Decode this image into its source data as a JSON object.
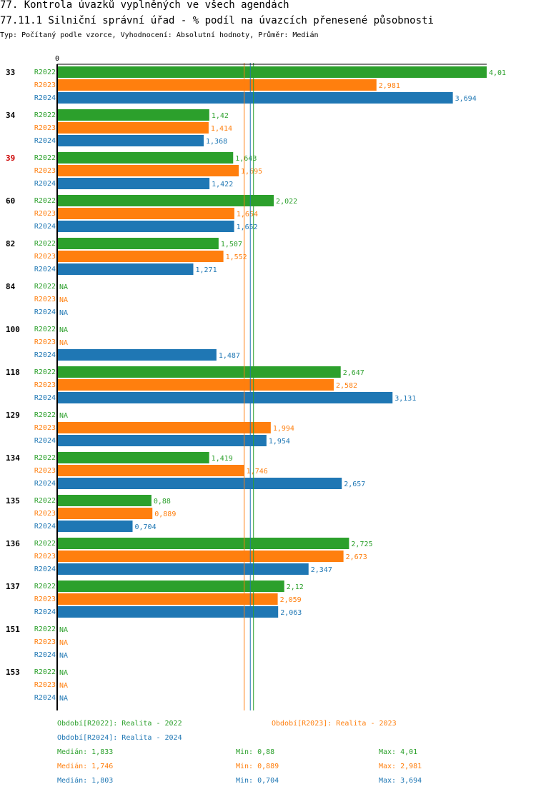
{
  "header": {
    "title": "77. Kontrola úvazků vyplněných ve všech agendách",
    "subtitle": "77.11.1 Silniční správní úřad - % podíl na úvazcích přenesené působnosti",
    "info": "Typ: Počítaný podle vzorce, Vyhodnocení: Absolutní hodnoty, Průměr: Medián"
  },
  "colors": {
    "R2022": "#2ca02c",
    "R2023": "#ff7f0e",
    "R2024": "#1f77b4",
    "highlight": "#cc0000"
  },
  "chart_data": {
    "type": "bar",
    "orientation": "horizontal",
    "title": "77.11.1 Silniční správní úřad - % podíl na úvazcích přenesené působnosti",
    "x_tick_labels": [
      "0"
    ],
    "xlim": [
      0,
      4.01
    ],
    "na_label": "NA",
    "series_names": [
      "R2022",
      "R2023",
      "R2024"
    ],
    "categories": [
      {
        "label": "33",
        "highlight": false,
        "values": [
          4.01,
          2.981,
          3.694
        ],
        "labels": [
          "4,01",
          "2,981",
          "3,694"
        ]
      },
      {
        "label": "34",
        "highlight": false,
        "values": [
          1.42,
          1.414,
          1.368
        ],
        "labels": [
          "1,42",
          "1,414",
          "1,368"
        ]
      },
      {
        "label": "39",
        "highlight": true,
        "values": [
          1.643,
          1.695,
          1.422
        ],
        "labels": [
          "1,643",
          "1,695",
          "1,422"
        ]
      },
      {
        "label": "60",
        "highlight": false,
        "values": [
          2.022,
          1.654,
          1.652
        ],
        "labels": [
          "2,022",
          "1,654",
          "1,652"
        ]
      },
      {
        "label": "82",
        "highlight": false,
        "values": [
          1.507,
          1.552,
          1.271
        ],
        "labels": [
          "1,507",
          "1,552",
          "1,271"
        ]
      },
      {
        "label": "84",
        "highlight": false,
        "values": [
          null,
          null,
          null
        ],
        "labels": [
          "NA",
          "NA",
          "NA"
        ]
      },
      {
        "label": "100",
        "highlight": false,
        "values": [
          null,
          null,
          1.487
        ],
        "labels": [
          "NA",
          "NA",
          "1,487"
        ]
      },
      {
        "label": "118",
        "highlight": false,
        "values": [
          2.647,
          2.582,
          3.131
        ],
        "labels": [
          "2,647",
          "2,582",
          "3,131"
        ]
      },
      {
        "label": "129",
        "highlight": false,
        "values": [
          null,
          1.994,
          1.954
        ],
        "labels": [
          "NA",
          "1,994",
          "1,954"
        ]
      },
      {
        "label": "134",
        "highlight": false,
        "values": [
          1.419,
          1.746,
          2.657
        ],
        "labels": [
          "1,419",
          "1,746",
          "2,657"
        ]
      },
      {
        "label": "135",
        "highlight": false,
        "values": [
          0.88,
          0.889,
          0.704
        ],
        "labels": [
          "0,88",
          "0,889",
          "0,704"
        ]
      },
      {
        "label": "136",
        "highlight": false,
        "values": [
          2.725,
          2.673,
          2.347
        ],
        "labels": [
          "2,725",
          "2,673",
          "2,347"
        ]
      },
      {
        "label": "137",
        "highlight": false,
        "values": [
          2.12,
          2.059,
          2.063
        ],
        "labels": [
          "2,12",
          "2,059",
          "2,063"
        ]
      },
      {
        "label": "151",
        "highlight": false,
        "values": [
          null,
          null,
          null
        ],
        "labels": [
          "NA",
          "NA",
          "NA"
        ]
      },
      {
        "label": "153",
        "highlight": false,
        "values": [
          null,
          null,
          null
        ],
        "labels": [
          "NA",
          "NA",
          "NA"
        ]
      }
    ],
    "median_lines": [
      {
        "series": "R2022",
        "value": 1.833
      },
      {
        "series": "R2023",
        "value": 1.746
      },
      {
        "series": "R2024",
        "value": 1.803
      }
    ]
  },
  "legend": {
    "periods": [
      {
        "series": "R2022",
        "text": "Období[R2022]: Realita - 2022"
      },
      {
        "series": "R2023",
        "text": "Období[R2023]: Realita - 2023"
      },
      {
        "series": "R2024",
        "text": "Období[R2024]: Realita - 2024"
      }
    ],
    "stats": [
      {
        "series": "R2022",
        "median": "Medián: 1,833",
        "min": "Min: 0,88",
        "max": "Max: 4,01"
      },
      {
        "series": "R2023",
        "median": "Medián: 1,746",
        "min": "Min: 0,889",
        "max": "Max: 2,981"
      },
      {
        "series": "R2024",
        "median": "Medián: 1,803",
        "min": "Min: 0,704",
        "max": "Max: 3,694"
      }
    ]
  }
}
